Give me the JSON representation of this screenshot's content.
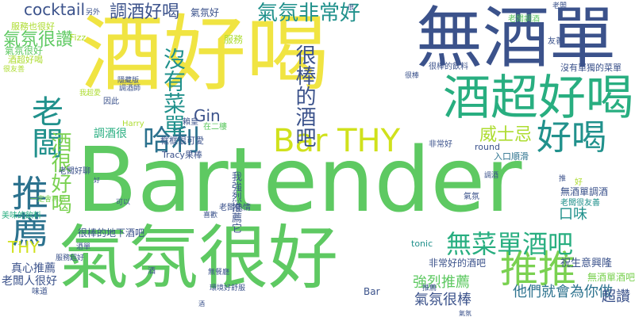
{
  "word_cloud": {
    "background": "#ffffff",
    "palette": {
      "yellow": "#f0e442",
      "lime": "#addc30",
      "green": "#5ec962",
      "green2": "#7ad151",
      "teal": "#21918c",
      "teal2": "#28ae80",
      "blue": "#3b528b",
      "blue2": "#2c728e",
      "indigo": "#472d7b",
      "purple": "#440154"
    },
    "words": [
      {
        "text": "Bartender",
        "color": "#5ec962"
      },
      {
        "text": "酒好喝",
        "color": "#f0e442"
      },
      {
        "text": "氣氛很好",
        "color": "#5ec962"
      },
      {
        "text": "無酒單",
        "color": "#3b528b"
      },
      {
        "text": "酒超好喝",
        "color": "#28ae80"
      },
      {
        "text": "推推",
        "color": "#7ad151"
      },
      {
        "text": "推薦",
        "color": "#2c728e"
      },
      {
        "text": "老闆",
        "color": "#21918c"
      },
      {
        "text": "Bar THY",
        "color": "#d0e11c"
      },
      {
        "text": "好喝",
        "color": "#21918c"
      },
      {
        "text": "無菜單酒吧",
        "color": "#28ae80"
      },
      {
        "text": "很棒的酒吧",
        "color": "#3b528b"
      },
      {
        "text": "氣氛非常好",
        "color": "#21918c"
      },
      {
        "text": "調酒好喝",
        "color": "#3b528b"
      },
      {
        "text": "cocktail",
        "color": "#3b528b"
      },
      {
        "text": "哈利",
        "color": "#2c728e"
      },
      {
        "text": "沒有菜單",
        "color": "#21918c"
      },
      {
        "text": "氣氛很讚",
        "color": "#5ec962"
      },
      {
        "text": "酒很好喝",
        "color": "#7ad151"
      },
      {
        "text": "威士忌",
        "color": "#addc30"
      },
      {
        "text": "強烈推薦",
        "color": "#5ec962"
      },
      {
        "text": "氣氛很棒",
        "color": "#3b528b"
      },
      {
        "text": "他們就會為你做",
        "color": "#2c728e"
      },
      {
        "text": "超讚",
        "color": "#3b528b"
      },
      {
        "text": "Gin",
        "color": "#3b528b"
      },
      {
        "text": "口味",
        "color": "#21918c"
      },
      {
        "text": "THY",
        "color": "#d0e11c"
      },
      {
        "text": "祝生意興隆",
        "color": "#3b528b"
      },
      {
        "text": "氣氛好",
        "color": "#3b528b"
      },
      {
        "text": "調酒很",
        "color": "#28ae80"
      },
      {
        "text": "真心推薦",
        "color": "#3b528b"
      },
      {
        "text": "老闆人很好",
        "color": "#3b528b"
      },
      {
        "text": "無酒單調酒",
        "color": "#3b528b"
      },
      {
        "text": "無酒單酒吧",
        "color": "#7ad151"
      },
      {
        "text": "我強烈推薦它",
        "color": "#3b528b"
      },
      {
        "text": "很棒的地下酒吧",
        "color": "#3b528b"
      },
      {
        "text": "非常好的酒吧",
        "color": "#3b528b"
      },
      {
        "text": "服務",
        "color": "#addc30"
      },
      {
        "text": "氣氛很好",
        "color": "#5ec962"
      },
      {
        "text": "酒超好喝",
        "color": "#addc30"
      },
      {
        "text": "服務也很好",
        "color": "#addc30"
      },
      {
        "text": "Fizz",
        "color": "#addc30"
      },
      {
        "text": "round",
        "color": "#3b528b"
      },
      {
        "text": "tonic",
        "color": "#21918c"
      },
      {
        "text": "Harry",
        "color": "#addc30"
      },
      {
        "text": "Tracy果棒",
        "color": "#3b528b"
      },
      {
        "text": "框框很可愛",
        "color": "#3b528b"
      },
      {
        "text": "賴皇",
        "color": "#3b528b"
      },
      {
        "text": "入口順滑",
        "color": "#2c728e"
      },
      {
        "text": "非常好",
        "color": "#3b528b"
      },
      {
        "text": "在二樓",
        "color": "#5ec962"
      },
      {
        "text": "因此",
        "color": "#3b528b"
      },
      {
        "text": "沒有單獨的菜單",
        "color": "#3b528b"
      },
      {
        "text": "很棒的飲料",
        "color": "#3b528b"
      },
      {
        "text": "美味的飲料",
        "color": "#28ae80"
      },
      {
        "text": "老闆好聊",
        "color": "#3b528b"
      },
      {
        "text": "老闆很友善",
        "color": "#21918c"
      },
      {
        "text": "老闆熱情",
        "color": "#3b528b"
      },
      {
        "text": "老闆調酒",
        "color": "#5ec962"
      },
      {
        "text": "友善",
        "color": "#3b528b"
      },
      {
        "text": "氣氛",
        "color": "#3b528b"
      },
      {
        "text": "好",
        "color": "#addc30"
      },
      {
        "text": "Bar",
        "color": "#3b528b"
      },
      {
        "text": "酒",
        "color": "#3b528b"
      },
      {
        "text": "味道",
        "color": "#3b528b"
      },
      {
        "text": "我超愛",
        "color": "#addc30"
      },
      {
        "text": "另外",
        "color": "#3b528b"
      },
      {
        "text": "一定會再訪",
        "color": "#7ad151"
      },
      {
        "text": "隱藏版",
        "color": "#3b528b"
      },
      {
        "text": "很友善",
        "color": "#addc30"
      },
      {
        "text": "服務超好",
        "color": "#3b528b"
      },
      {
        "text": "調酒師",
        "color": "#3b528b"
      },
      {
        "text": "推",
        "color": "#3b528b"
      },
      {
        "text": "可以",
        "color": "#3b528b"
      },
      {
        "text": "酒單",
        "color": "#3b528b"
      },
      {
        "text": "老闆",
        "color": "#3b528b"
      },
      {
        "text": "喜歡",
        "color": "#3b528b"
      },
      {
        "text": "調酒",
        "color": "#3b528b"
      },
      {
        "text": "很棒",
        "color": "#3b528b"
      },
      {
        "text": "推薦",
        "color": "#3b528b"
      },
      {
        "text": "氣氛",
        "color": "#3b528b"
      },
      {
        "text": "好",
        "color": "#3b528b"
      },
      {
        "text": "酒",
        "color": "#3b528b"
      },
      {
        "text": "很",
        "color": "#3b528b"
      },
      {
        "text": "環境好舒服",
        "color": "#3b528b"
      },
      {
        "text": "無餐廳",
        "color": "#3b528b"
      }
    ]
  }
}
